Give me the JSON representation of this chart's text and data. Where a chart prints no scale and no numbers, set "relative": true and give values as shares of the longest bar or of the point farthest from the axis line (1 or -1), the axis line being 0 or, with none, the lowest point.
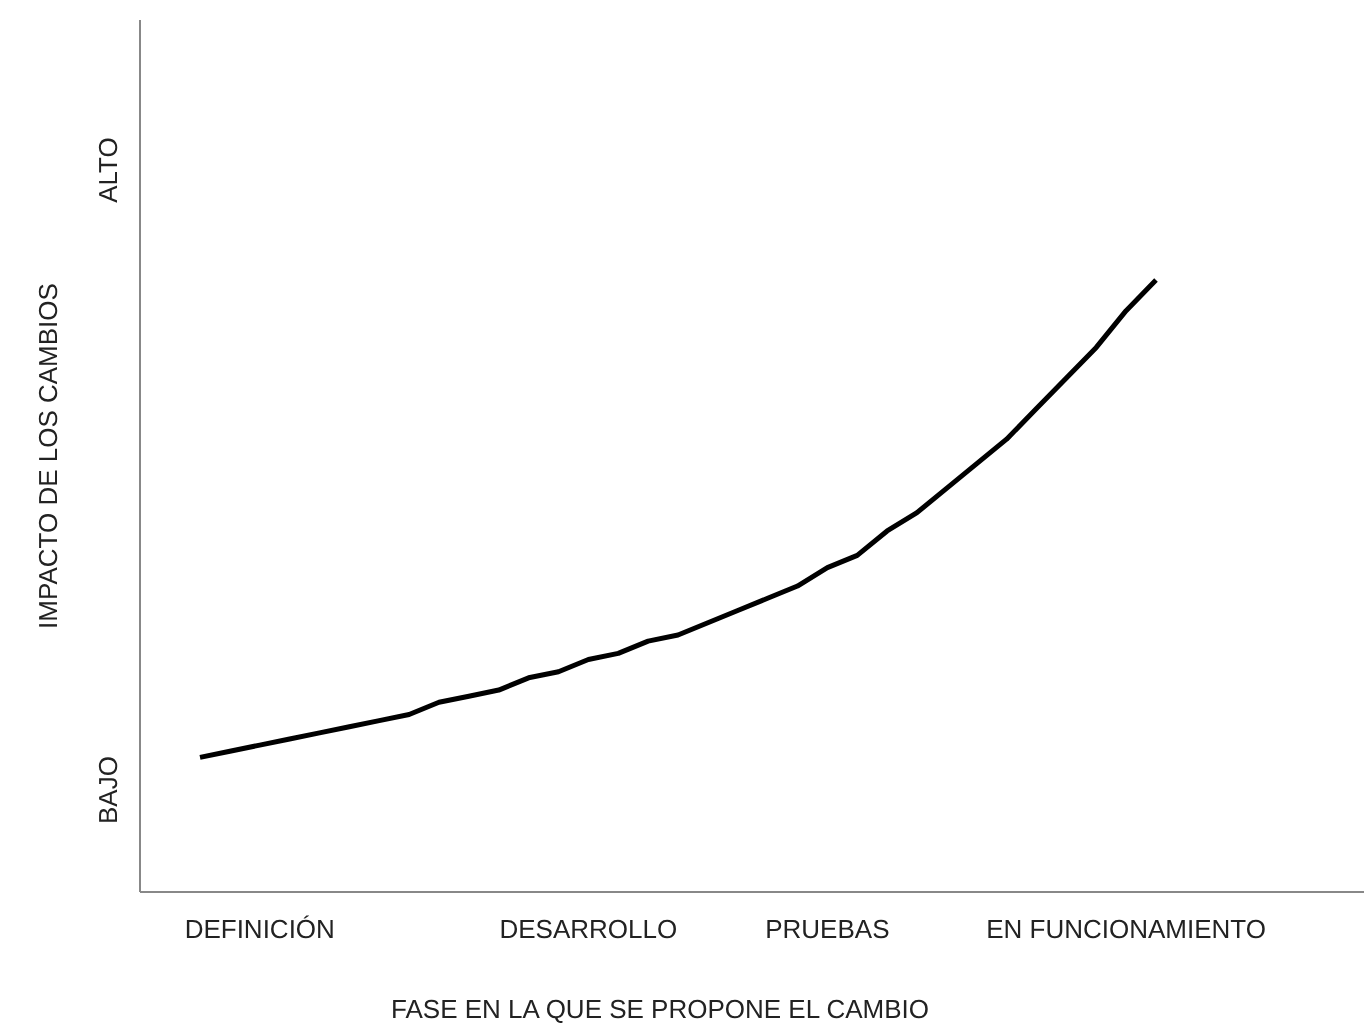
{
  "chart_data": {
    "type": "line",
    "relative": true,
    "xlabel": "FASE EN LA QUE SE PROPONE EL CAMBIO",
    "ylabel": "IMPACTO DE LOS CAMBIOS",
    "annotations": [
      "BAJO",
      "ALTO"
    ],
    "categories": [
      null,
      null,
      "DEFINICIÓN",
      null,
      null,
      null,
      null,
      null,
      null,
      null,
      null,
      null,
      null,
      "DESARROLLO",
      null,
      null,
      null,
      null,
      null,
      null,
      null,
      "PRUEBAS",
      null,
      null,
      null,
      null,
      null,
      null,
      null,
      null,
      null,
      "EN FUNCIONAMIENTO",
      null
    ],
    "series": [
      {
        "color": "#000000",
        "values": [
          0.22,
          0.23,
          0.24,
          0.25,
          0.26,
          0.27,
          0.28,
          0.29,
          0.31,
          0.32,
          0.33,
          0.35,
          0.36,
          0.38,
          0.39,
          0.41,
          0.42,
          0.44,
          0.46,
          0.48,
          0.5,
          0.53,
          0.55,
          0.59,
          0.62,
          0.66,
          0.7,
          0.74,
          0.79,
          0.84,
          0.89,
          0.95,
          1.0
        ]
      }
    ],
    "marker": "none",
    "line_style": "solid",
    "grid": false
  }
}
